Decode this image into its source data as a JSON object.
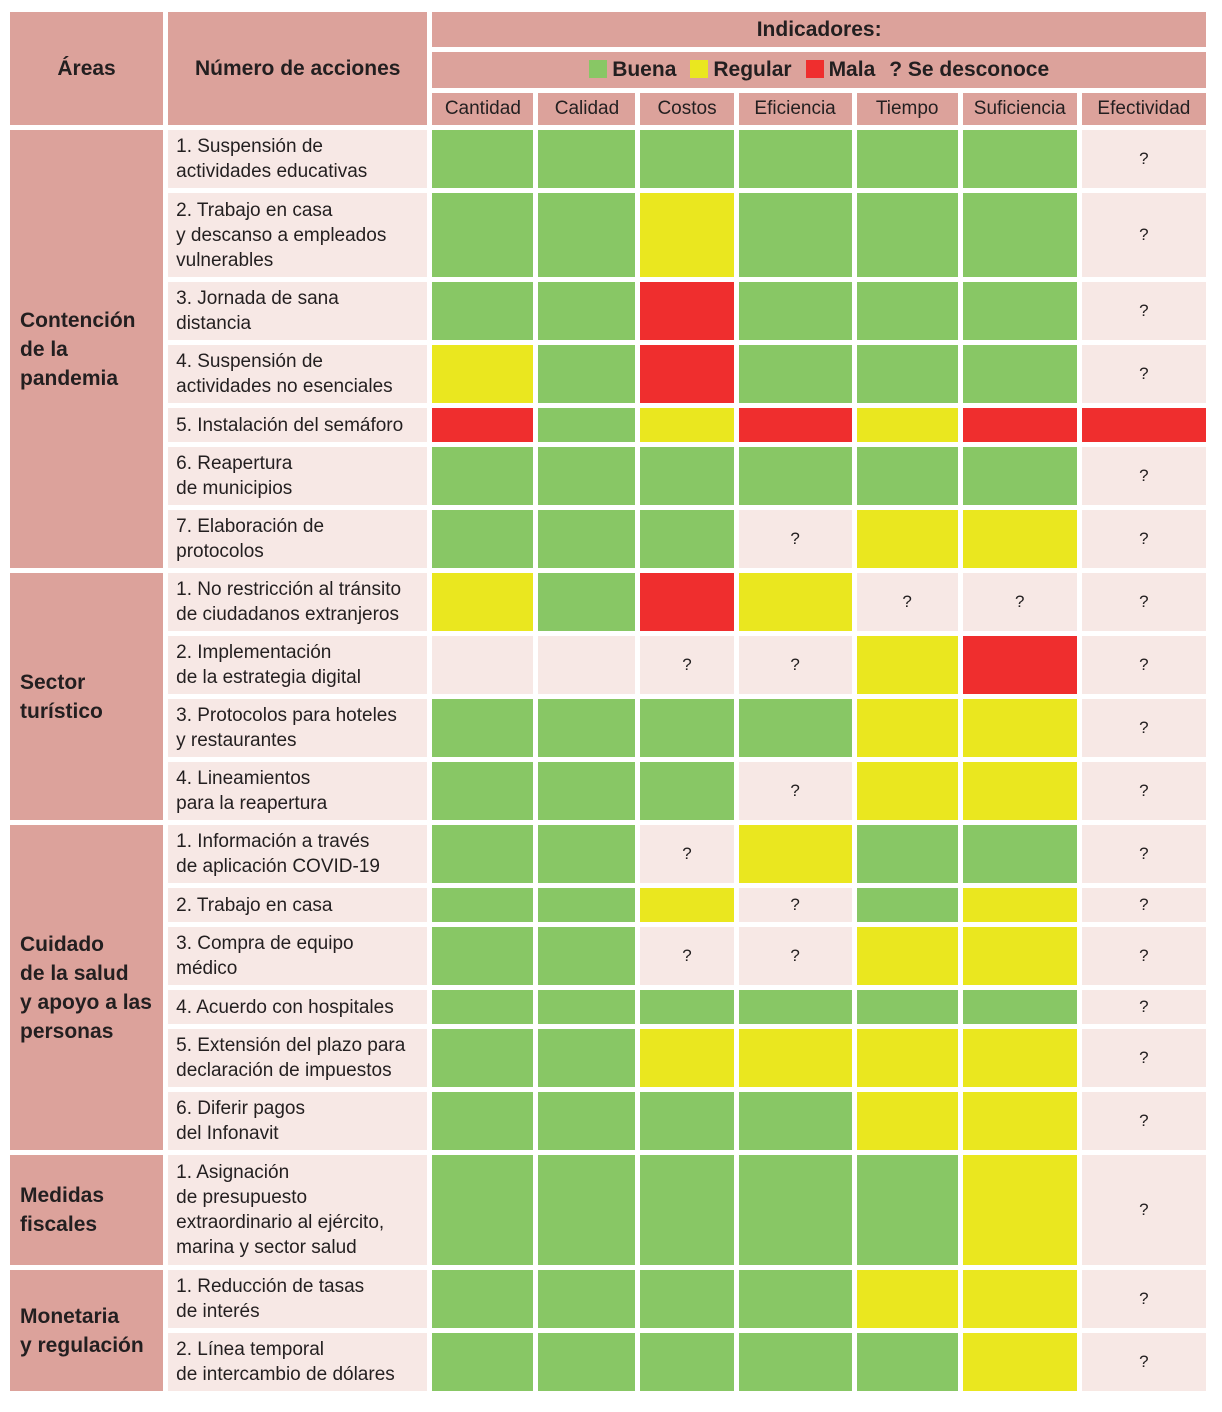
{
  "header": {
    "areas": "Áreas",
    "acciones": "Número de acciones",
    "indicadores": "Indicadores:",
    "legend": [
      {
        "label": "Buena",
        "color": "#88c765",
        "key": "buena"
      },
      {
        "label": "Regular",
        "color": "#eae71f",
        "key": "regular"
      },
      {
        "label": "Mala",
        "color": "#ef2e2e",
        "key": "mala"
      },
      {
        "label": "? Se desconoce",
        "color": "",
        "key": "?"
      }
    ],
    "columns": [
      "Cantidad",
      "Calidad",
      "Costos",
      "Eficiencia",
      "Tiempo",
      "Suficiencia",
      "Efectividad"
    ]
  },
  "groups": [
    {
      "area": "Contención\nde la\npandemia",
      "rows": [
        {
          "action": "1. Suspensión de\nactividades educativas",
          "values": [
            "buena",
            "buena",
            "buena",
            "buena",
            "buena",
            "buena",
            "?"
          ]
        },
        {
          "action": "2. Trabajo en casa\ny descanso a empleados\nvulnerables",
          "values": [
            "buena",
            "buena",
            "regular",
            "buena",
            "buena",
            "buena",
            "?"
          ]
        },
        {
          "action": "3. Jornada de sana\ndistancia",
          "values": [
            "buena",
            "buena",
            "mala",
            "buena",
            "buena",
            "buena",
            "?"
          ]
        },
        {
          "action": "4. Suspensión de\nactividades no esenciales",
          "values": [
            "regular",
            "buena",
            "mala",
            "buena",
            "buena",
            "buena",
            "?"
          ]
        },
        {
          "action": "5. Instalación del semáforo",
          "values": [
            "mala",
            "buena",
            "regular",
            "mala",
            "regular",
            "mala",
            "mala"
          ]
        },
        {
          "action": "6. Reapertura\nde municipios",
          "values": [
            "buena",
            "buena",
            "buena",
            "buena",
            "buena",
            "buena",
            "?"
          ]
        },
        {
          "action": "7. Elaboración de\nprotocolos",
          "values": [
            "buena",
            "buena",
            "buena",
            "?",
            "regular",
            "regular",
            "?"
          ]
        }
      ]
    },
    {
      "area": "Sector\nturístico",
      "rows": [
        {
          "action": "1. No restricción al tránsito\nde ciudadanos extranjeros",
          "values": [
            "regular",
            "buena",
            "mala",
            "regular",
            "?",
            "?",
            "?"
          ]
        },
        {
          "action": "2. Implementación\nde la estrategia digital",
          "values": [
            "",
            "",
            "?",
            "?",
            "regular",
            "mala",
            "?"
          ]
        },
        {
          "action": "3. Protocolos para hoteles\ny restaurantes",
          "values": [
            "buena",
            "buena",
            "buena",
            "buena",
            "regular",
            "regular",
            "?"
          ]
        },
        {
          "action": "4. Lineamientos\npara la reapertura",
          "values": [
            "buena",
            "buena",
            "buena",
            "?",
            "regular",
            "regular",
            "?"
          ]
        }
      ]
    },
    {
      "area": "Cuidado\nde la salud\ny apoyo a las\npersonas",
      "rows": [
        {
          "action": "1. Información a través\nde aplicación COVID-19",
          "values": [
            "buena",
            "buena",
            "?",
            "regular",
            "buena",
            "buena",
            "?"
          ]
        },
        {
          "action": "2. Trabajo en casa",
          "values": [
            "buena",
            "buena",
            "regular",
            "?",
            "buena",
            "regular",
            "?"
          ]
        },
        {
          "action": "3. Compra de equipo\nmédico",
          "values": [
            "buena",
            "buena",
            "?",
            "?",
            "regular",
            "regular",
            "?"
          ]
        },
        {
          "action": "4. Acuerdo con hospitales",
          "values": [
            "buena",
            "buena",
            "buena",
            "buena",
            "buena",
            "buena",
            "?"
          ]
        },
        {
          "action": "5. Extensión del plazo para\ndeclaración de impuestos",
          "values": [
            "buena",
            "buena",
            "regular",
            "regular",
            "regular",
            "regular",
            "?"
          ]
        },
        {
          "action": "6. Diferir pagos\ndel Infonavit",
          "values": [
            "buena",
            "buena",
            "buena",
            "buena",
            "regular",
            "regular",
            "?"
          ]
        }
      ]
    },
    {
      "area": "Medidas\nfiscales",
      "rows": [
        {
          "action": "1. Asignación\nde presupuesto\nextraordinario al ejército,\nmarina y sector salud",
          "values": [
            "buena",
            "buena",
            "buena",
            "buena",
            "buena",
            "regular",
            "?"
          ]
        }
      ]
    },
    {
      "area": "Monetaria\ny regulación",
      "rows": [
        {
          "action": "1. Reducción de tasas\nde interés",
          "values": [
            "buena",
            "buena",
            "buena",
            "buena",
            "regular",
            "regular",
            "?"
          ]
        },
        {
          "action": "2. Línea temporal\nde intercambio de dólares",
          "values": [
            "buena",
            "buena",
            "buena",
            "buena",
            "buena",
            "regular",
            "?"
          ]
        }
      ]
    }
  ]
}
